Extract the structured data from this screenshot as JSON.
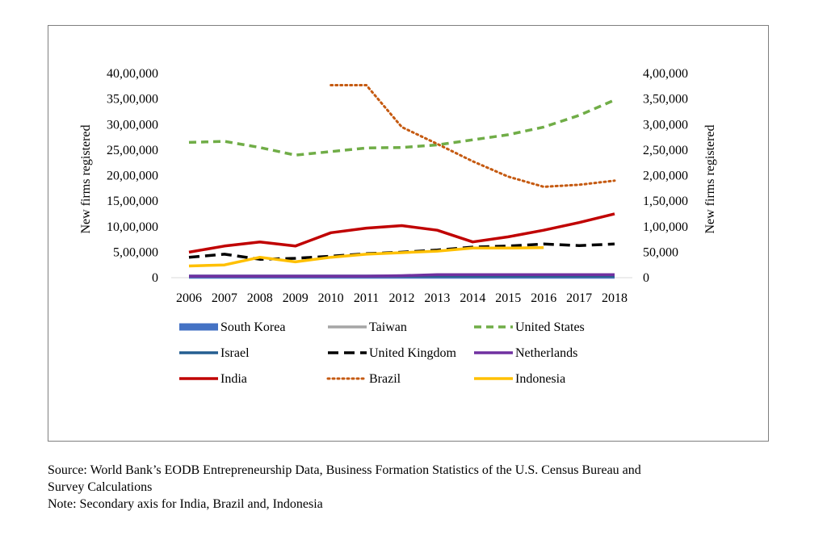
{
  "chart_data": {
    "type": "line",
    "ylabel_left": "New firms registered",
    "ylabel_right": "New firms registered",
    "ylim_left": [
      0,
      4000000
    ],
    "ylim_right": [
      0,
      400000
    ],
    "yticks_left": [
      "0",
      "5,00,000",
      "10,00,000",
      "15,00,000",
      "20,00,000",
      "25,00,000",
      "30,00,000",
      "35,00,000",
      "40,00,000"
    ],
    "yticks_right": [
      "0",
      "50,000",
      "1,00,000",
      "1,50,000",
      "2,00,000",
      "2,50,000",
      "3,00,000",
      "3,50,000",
      "4,00,000"
    ],
    "categories": [
      "2006",
      "2007",
      "2008",
      "2009",
      "2010",
      "2011",
      "2012",
      "2013",
      "2014",
      "2015",
      "2016",
      "2017",
      "2018"
    ],
    "series": [
      {
        "name": "South Korea",
        "axis": "left",
        "color": "#4472c4",
        "style": "thick",
        "values": [
          20000,
          20000,
          20000,
          20000,
          20000,
          20000,
          20000,
          20000,
          20000,
          20000,
          20000,
          20000,
          20000
        ]
      },
      {
        "name": "Taiwan",
        "axis": "left",
        "color": "#a5a5a5",
        "style": "solid",
        "values": [
          25000,
          25000,
          25000,
          25000,
          25000,
          25000,
          25000,
          25000,
          25000,
          25000,
          25000,
          25000,
          25000
        ]
      },
      {
        "name": "United States",
        "axis": "left",
        "color": "#70ad47",
        "style": "dashed",
        "values": [
          2650000,
          2670000,
          2550000,
          2400000,
          2470000,
          2540000,
          2550000,
          2600000,
          2700000,
          2800000,
          2950000,
          3180000,
          3480000
        ]
      },
      {
        "name": "Israel",
        "axis": "left",
        "color": "#255e91",
        "style": "solid",
        "values": [
          30000,
          30000,
          30000,
          30000,
          30000,
          30000,
          30000,
          30000,
          30000,
          30000,
          30000,
          30000,
          30000
        ]
      },
      {
        "name": "United Kingdom",
        "axis": "left",
        "color": "#000000",
        "style": "longdash",
        "values": [
          400000,
          460000,
          360000,
          380000,
          420000,
          470000,
          500000,
          540000,
          600000,
          620000,
          660000,
          630000,
          660000
        ]
      },
      {
        "name": "Netherlands",
        "axis": "left",
        "color": "#7030a0",
        "style": "solid",
        "values": [
          30000,
          30000,
          30000,
          30000,
          30000,
          30000,
          40000,
          60000,
          60000,
          60000,
          60000,
          60000,
          60000
        ]
      },
      {
        "name": "India",
        "axis": "right",
        "color": "#c00000",
        "style": "solid",
        "values": [
          50000,
          62000,
          70000,
          62000,
          88000,
          97000,
          102000,
          93000,
          70000,
          80000,
          93000,
          108000,
          125000
        ]
      },
      {
        "name": "Brazil",
        "axis": "right",
        "color": "#c55a11",
        "style": "dotted",
        "values": [
          null,
          null,
          null,
          null,
          377000,
          377000,
          295000,
          262000,
          228000,
          198000,
          178000,
          182000,
          190000
        ]
      },
      {
        "name": "Indonesia",
        "axis": "right",
        "color": "#ffc000",
        "style": "solid",
        "values": [
          23000,
          25000,
          40000,
          31000,
          40000,
          46000,
          49000,
          52000,
          58000,
          58000,
          59000,
          null,
          null
        ]
      }
    ],
    "legend": [
      [
        "South Korea",
        "Taiwan",
        "United States"
      ],
      [
        "Israel",
        "United Kingdom",
        "Netherlands"
      ],
      [
        "India",
        "Brazil",
        "Indonesia"
      ]
    ],
    "legend_placement": "bottom"
  },
  "caption": {
    "source_line1": "Source: World Bank’s EODB Entrepreneurship Data, Business Formation Statistics of the U.S. Census Bureau and",
    "source_line2": "Survey Calculations",
    "note": "Note: Secondary axis for India, Brazil and, Indonesia"
  }
}
